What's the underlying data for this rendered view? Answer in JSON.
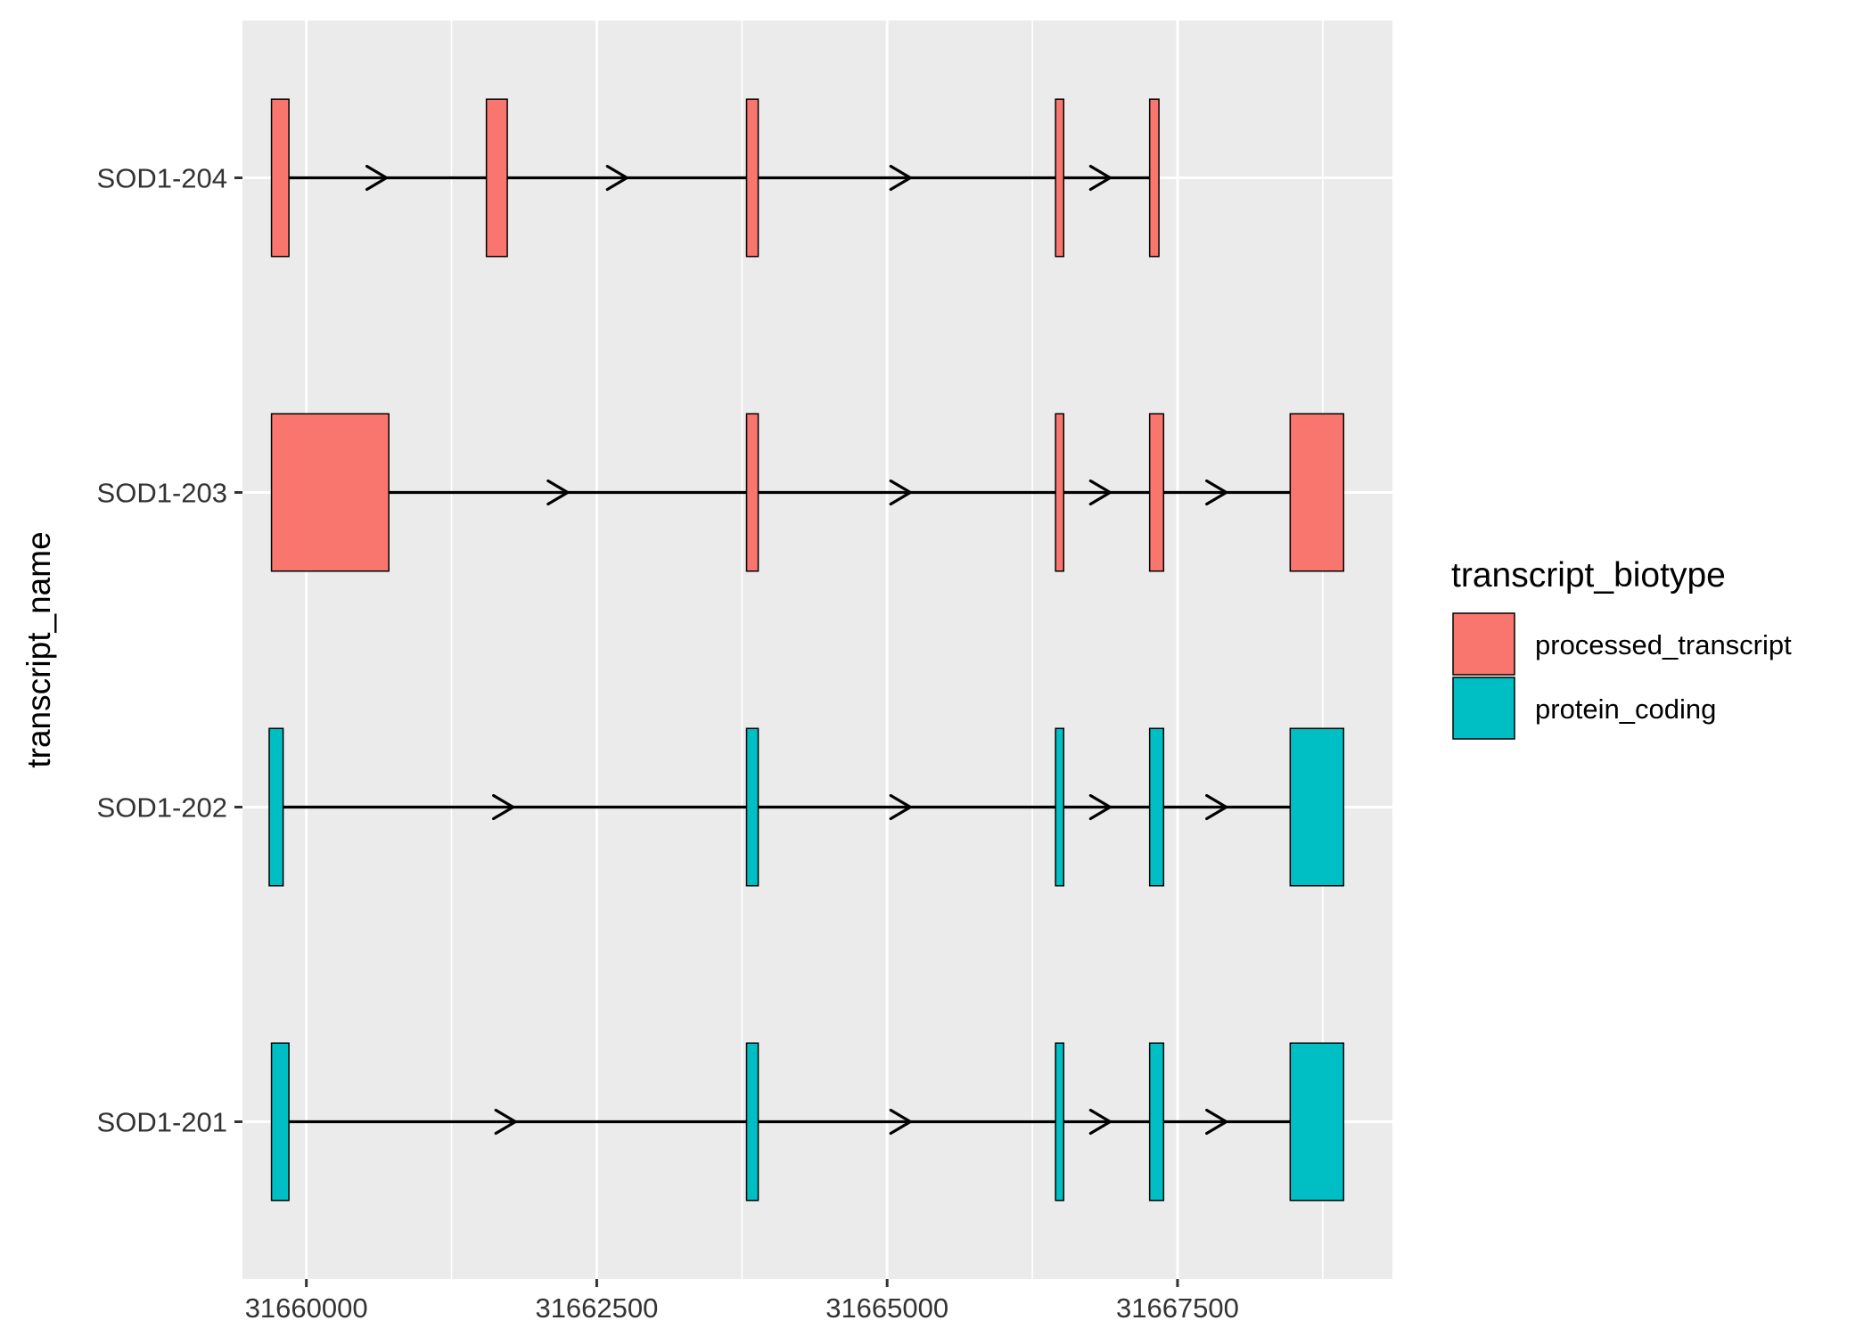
{
  "chart_data": {
    "type": "gene-structure",
    "title": "",
    "xlabel": "",
    "ylabel": "transcript_name",
    "xlim": [
      31659450,
      31669350
    ],
    "x_ticks": [
      31660000,
      31662500,
      31665000,
      31667500
    ],
    "x_tick_labels": [
      "31660000",
      "31662500",
      "31665000",
      "31667500"
    ],
    "grid": true,
    "legend": {
      "title": "transcript_biotype",
      "position": "right",
      "entries": [
        {
          "label": "processed_transcript",
          "color": "#F8766D"
        },
        {
          "label": "protein_coding",
          "color": "#00BFC4"
        }
      ]
    },
    "transcripts": [
      {
        "name": "SOD1-201",
        "biotype": "protein_coding",
        "exons": [
          [
            31659700,
            31659850
          ],
          [
            31663790,
            31663890
          ],
          [
            31666450,
            31666520
          ],
          [
            31667260,
            31667380
          ],
          [
            31668470,
            31668930
          ]
        ],
        "arrows": [
          31661800,
          31665200,
          31666920,
          31667920
        ]
      },
      {
        "name": "SOD1-202",
        "biotype": "protein_coding",
        "exons": [
          [
            31659680,
            31659800
          ],
          [
            31663790,
            31663890
          ],
          [
            31666450,
            31666520
          ],
          [
            31667260,
            31667380
          ],
          [
            31668470,
            31668930
          ]
        ],
        "arrows": [
          31661780,
          31665200,
          31666920,
          31667920
        ]
      },
      {
        "name": "SOD1-203",
        "biotype": "processed_transcript",
        "exons": [
          [
            31659700,
            31660710
          ],
          [
            31663790,
            31663890
          ],
          [
            31666450,
            31666520
          ],
          [
            31667260,
            31667380
          ],
          [
            31668470,
            31668930
          ]
        ],
        "arrows": [
          31662250,
          31665200,
          31666920,
          31667920
        ]
      },
      {
        "name": "SOD1-204",
        "biotype": "processed_transcript",
        "exons": [
          [
            31659700,
            31659850
          ],
          [
            31661550,
            31661730
          ],
          [
            31663790,
            31663890
          ],
          [
            31666450,
            31666520
          ],
          [
            31667260,
            31667340
          ]
        ],
        "arrows": [
          31660690,
          31662760,
          31665200,
          31666920
        ]
      }
    ]
  }
}
